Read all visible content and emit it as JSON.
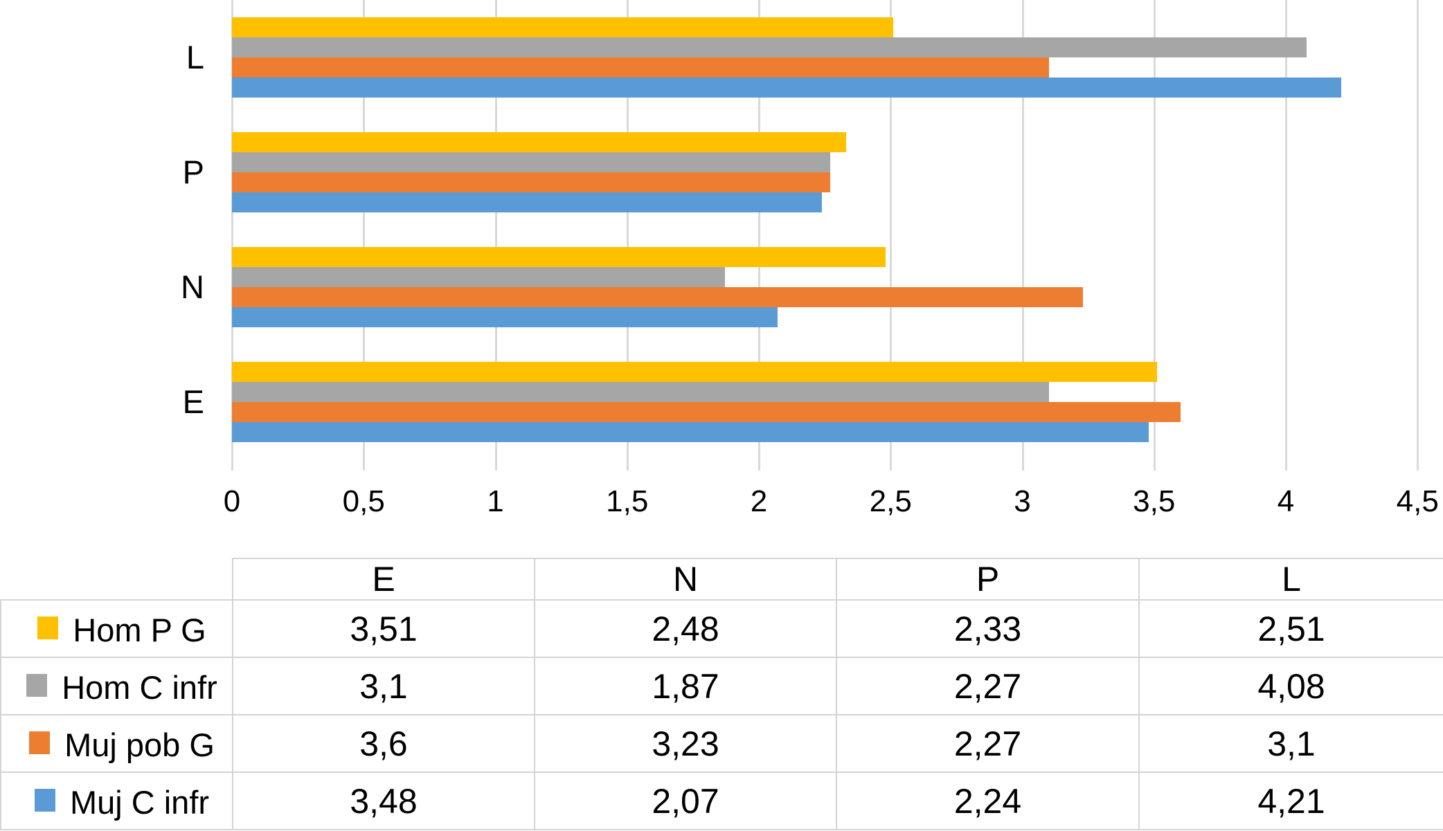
{
  "chart_data": {
    "type": "bar",
    "orientation": "horizontal",
    "title": "",
    "xlabel": "",
    "ylabel": "",
    "categories": [
      "E",
      "N",
      "P",
      "L"
    ],
    "category_display_order_top_to_bottom": [
      "L",
      "P",
      "N",
      "E"
    ],
    "series": [
      {
        "name": "Hom P G",
        "color": "#FFC000",
        "values": [
          3.51,
          2.48,
          2.33,
          2.51
        ],
        "value_labels": [
          "3,51",
          "2,48",
          "2,33",
          "2,51"
        ]
      },
      {
        "name": "Hom C infr",
        "color": "#A6A6A6",
        "values": [
          3.1,
          1.87,
          2.27,
          4.08
        ],
        "value_labels": [
          "3,1",
          "1,87",
          "2,27",
          "4,08"
        ]
      },
      {
        "name": "Muj pob G",
        "color": "#ED7D31",
        "values": [
          3.6,
          3.23,
          2.27,
          3.1
        ],
        "value_labels": [
          "3,6",
          "3,23",
          "2,27",
          "3,1"
        ]
      },
      {
        "name": "Muj C infr",
        "color": "#5B9BD5",
        "values": [
          3.48,
          2.07,
          2.24,
          4.21
        ],
        "value_labels": [
          "3,48",
          "2,07",
          "2,24",
          "4,21"
        ]
      }
    ],
    "xlim": [
      0,
      4.5
    ],
    "x_ticks": [
      0,
      0.5,
      1,
      1.5,
      2,
      2.5,
      3,
      3.5,
      4,
      4.5
    ],
    "x_tick_labels": [
      "0",
      "0,5",
      "1",
      "1,5",
      "2",
      "2,5",
      "3",
      "3,5",
      "4",
      "4,5"
    ],
    "grid": true,
    "gridline_color": "#D9D9D9",
    "legend_position": "table-below-chart"
  },
  "data_table": {
    "corner_label": "",
    "column_headers": [
      "E",
      "N",
      "P",
      "L"
    ],
    "rows": [
      {
        "label": "Hom P G",
        "swatch_color": "#FFC000",
        "values": [
          "3,51",
          "2,48",
          "2,33",
          "2,51"
        ]
      },
      {
        "label": "Hom C infr",
        "swatch_color": "#A6A6A6",
        "values": [
          "3,1",
          "1,87",
          "2,27",
          "4,08"
        ]
      },
      {
        "label": "Muj pob G",
        "swatch_color": "#ED7D31",
        "values": [
          "3,6",
          "3,23",
          "2,27",
          "3,1"
        ]
      },
      {
        "label": "Muj C infr",
        "swatch_color": "#5B9BD5",
        "values": [
          "3,48",
          "2,07",
          "2,24",
          "4,21"
        ]
      }
    ]
  }
}
